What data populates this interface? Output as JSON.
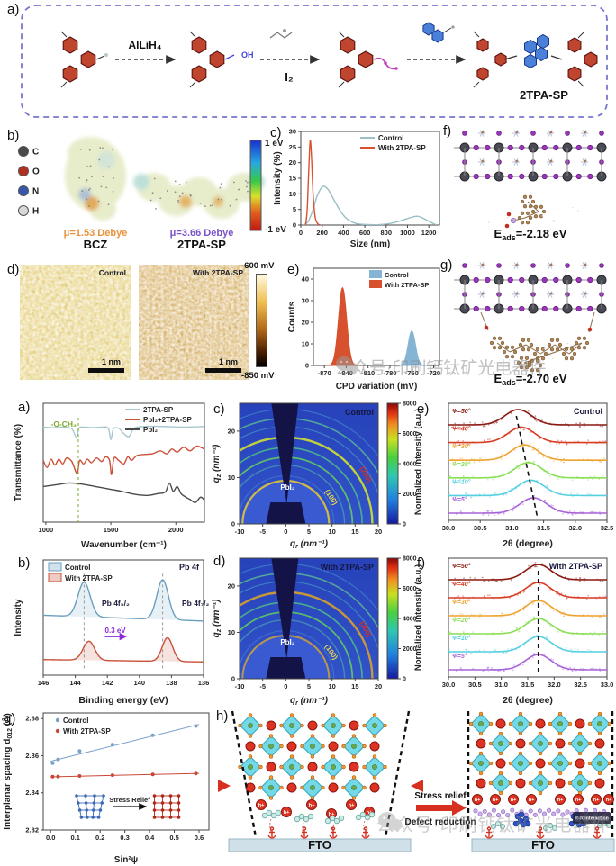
{
  "figure": {
    "panel_labels": {
      "a": "a)",
      "b": "b)",
      "c": "c)",
      "d": "d)",
      "e": "e)",
      "f": "f)",
      "g": "g)",
      "h": "h)",
      "a2": "a)",
      "b2": "b)",
      "c2": "c)",
      "d2": "d)",
      "e2": "e)",
      "f2": "f)",
      "g2": "g)"
    }
  },
  "watermark": {
    "text": "公众号·印刷钙钛矿光电器件"
  },
  "synthesis": {
    "reagent_step1": "AlLiH₄",
    "reagent_step2": "I₂",
    "oh_label": "OH",
    "product": "2TPA-SP"
  },
  "esp": {
    "atoms": [
      {
        "symbol": "C",
        "color": "#4a4a4a"
      },
      {
        "symbol": "O",
        "color": "#b23020"
      },
      {
        "symbol": "N",
        "color": "#3858b0"
      },
      {
        "symbol": "H",
        "color": "#d8d8d8"
      }
    ],
    "molecules": [
      {
        "name": "BCZ",
        "dipole": "μ=1.53 Debye",
        "dipole_color": "#e8923a"
      },
      {
        "name": "2TPA-SP",
        "dipole": "μ=3.66 Debye",
        "dipole_color": "#7b52c8"
      }
    ],
    "colorbar": {
      "top": "1 eV",
      "bottom": "-1 eV"
    }
  },
  "dft": {
    "top": {
      "prefix": "E",
      "sub": "ads",
      "rest": "=-2.18 eV"
    },
    "bottom": {
      "prefix": "E",
      "sub": "ads",
      "rest": "=-2.70 eV"
    }
  },
  "kpfm": {
    "images": [
      {
        "label": "Control"
      },
      {
        "label": "With 2TPA-SP"
      }
    ],
    "scalebar": "1 nm",
    "colorbar": {
      "top": "-600 mV",
      "bottom": "-850 mV"
    }
  },
  "schematic": {
    "arrow_top": "Stress relief",
    "arrow_bottom": "Defect reduction",
    "substrate": "FTO",
    "hole": "h+",
    "pi_label": "π-π interaction"
  },
  "chart_data": [
    {
      "id": "dls",
      "type": "line",
      "title": "",
      "xlabel": "Size (nm)",
      "ylabel": "Intensity (%)",
      "xlim": [
        0,
        1300
      ],
      "ylim": [
        0,
        30
      ],
      "xticks": [
        0,
        200,
        400,
        600,
        800,
        1000,
        1200
      ],
      "yticks": [
        0,
        5,
        10,
        15,
        20,
        25,
        30
      ],
      "legend_pos": "top-right",
      "grid": false,
      "series": [
        {
          "name": "Control",
          "color": "#9abfc7",
          "x": [
            30,
            70,
            110,
            150,
            190,
            220,
            260,
            320,
            380,
            440,
            520,
            620,
            720,
            820,
            920,
            1020,
            1100,
            1180,
            1270
          ],
          "y": [
            0,
            1.2,
            4.5,
            9,
            11.8,
            12.4,
            11.2,
            7.5,
            4,
            1.8,
            0.5,
            0.15,
            0.1,
            0.4,
            1.2,
            2.3,
            2.8,
            1.6,
            0
          ]
        },
        {
          "name": "With 2TPA-SP",
          "color": "#d8512e",
          "x": [
            45,
            60,
            75,
            88,
            100,
            115,
            135,
            160,
            185
          ],
          "y": [
            0,
            5,
            18,
            27,
            22,
            10,
            2.5,
            0.4,
            0
          ]
        }
      ]
    },
    {
      "id": "cpd",
      "type": "peaks",
      "xlabel": "CPD variation (mV)",
      "ylabel": "Counts",
      "xlim": [
        -885,
        -712
      ],
      "ylim": [
        0,
        45
      ],
      "xticks": [
        -870,
        -840,
        -810,
        -780,
        -750,
        -720
      ],
      "yticks": [
        0,
        10,
        20,
        30,
        40
      ],
      "legend": [
        {
          "name": "Control",
          "color": "#85b4d4"
        },
        {
          "name": "With 2TPA-SP",
          "color": "#d8512e"
        }
      ],
      "peaks": [
        {
          "name": "With 2TPA-SP",
          "color": "#d8512e",
          "center": -845,
          "height": 36,
          "sigma": 5.5
        },
        {
          "name": "Control",
          "color": "#85b4d4",
          "center": -750,
          "height": 16,
          "sigma": 5
        }
      ]
    },
    {
      "id": "ftir",
      "type": "line",
      "xlabel": "Wavenumber (cm⁻¹)",
      "ylabel": "Transmittance (%)",
      "xlim": [
        980,
        2220
      ],
      "ylim": [
        0,
        1
      ],
      "xticks": [
        1000,
        1500,
        2000
      ],
      "yticks": [],
      "annotation": {
        "text": "-O-CH₃",
        "x": 1250,
        "color": "#7aa82a"
      },
      "series": [
        {
          "name": "2TPA-SP",
          "color": "#a8c8d0",
          "x": [
            980,
            1060,
            1140,
            1200,
            1235,
            1255,
            1290,
            1360,
            1430,
            1480,
            1500,
            1520,
            1560,
            1600,
            1640,
            1680,
            1760,
            1900,
            2050,
            2220
          ],
          "y": [
            0.8,
            0.795,
            0.8,
            0.785,
            0.715,
            0.79,
            0.8,
            0.795,
            0.8,
            0.79,
            0.695,
            0.785,
            0.79,
            0.745,
            0.72,
            0.79,
            0.805,
            0.805,
            0.8,
            0.805
          ]
        },
        {
          "name": "PbI₂+2TPA-SP",
          "color": "#cc4f38",
          "x": [
            980,
            1010,
            1040,
            1070,
            1100,
            1130,
            1160,
            1200,
            1240,
            1260,
            1290,
            1320,
            1350,
            1390,
            1430,
            1460,
            1490,
            1505,
            1525,
            1560,
            1600,
            1630,
            1660,
            1700,
            1760,
            1820,
            1880,
            1930,
            1970,
            2010,
            2060,
            2110,
            2160,
            2220
          ],
          "y": [
            0.52,
            0.46,
            0.53,
            0.48,
            0.53,
            0.49,
            0.54,
            0.51,
            0.41,
            0.52,
            0.49,
            0.53,
            0.5,
            0.54,
            0.51,
            0.55,
            0.52,
            0.4,
            0.54,
            0.52,
            0.49,
            0.55,
            0.52,
            0.56,
            0.57,
            0.575,
            0.6,
            0.575,
            0.615,
            0.59,
            0.63,
            0.6,
            0.64,
            0.615
          ]
        },
        {
          "name": "PbI₂",
          "color": "#4a4a4a",
          "x": [
            980,
            1080,
            1180,
            1280,
            1380,
            1480,
            1580,
            1680,
            1780,
            1860,
            1920,
            1950,
            1980,
            2010,
            2040,
            2070,
            2110,
            2150,
            2190,
            2220
          ],
          "y": [
            0.3,
            0.315,
            0.33,
            0.32,
            0.3,
            0.28,
            0.26,
            0.235,
            0.225,
            0.24,
            0.255,
            0.33,
            0.26,
            0.3,
            0.24,
            0.215,
            0.19,
            0.165,
            0.21,
            0.185
          ]
        }
      ]
    },
    {
      "id": "xps",
      "type": "xps",
      "title": "Pb 4f",
      "xlabel": "Binding energy (eV)",
      "ylabel": "Intensity",
      "xlim": [
        146,
        136
      ],
      "xticks": [
        146,
        144,
        142,
        140,
        138,
        136
      ],
      "legend": [
        {
          "name": "Control",
          "color": "#6a9fc0"
        },
        {
          "name": "With 2TPA-SP",
          "color": "#c85038"
        }
      ],
      "curves": [
        {
          "name": "Control",
          "color": "#6a9fc0",
          "base": [
            0.52,
            0.47
          ],
          "peaks": [
            {
              "c": 143.45,
              "h": 0.3,
              "s": 0.38
            },
            {
              "c": 138.55,
              "h": 0.345,
              "s": 0.36
            }
          ]
        },
        {
          "name": "With 2TPA-SP",
          "color": "#c85038",
          "base": [
            0.135,
            0.115
          ],
          "peaks": [
            {
              "c": 143.15,
              "h": 0.165,
              "s": 0.36
            },
            {
              "c": 138.25,
              "h": 0.205,
              "s": 0.33
            }
          ]
        }
      ],
      "dashes": [
        143.45,
        138.55
      ],
      "shift": {
        "text": "0.3 eV",
        "x1": 142.15,
        "x2": 140.85,
        "yfrac": 0.335,
        "color": "#8a2ad8"
      },
      "peak_labels": [
        {
          "text": "Pb 4f₅/₂",
          "x": 142.35,
          "yfrac": 0.6
        },
        {
          "text": "Pb 4f₇/₂",
          "x": 137.35,
          "yfrac": 0.6
        }
      ]
    },
    {
      "id": "gw1",
      "type": "giwaxs",
      "title": "Control",
      "xlabel": "q_r (nm⁻¹)",
      "ylabel": "q_z (nm⁻¹)",
      "xlim": [
        -10,
        20
      ],
      "ylim": [
        0,
        26
      ],
      "xticks": [
        -10,
        -5,
        0,
        5,
        10,
        15,
        20
      ],
      "yticks": [
        0,
        10,
        20
      ],
      "cticks": [
        0,
        2000,
        4000,
        6000,
        8000
      ],
      "labels": {
        "pbi2": "PbI₂",
        "hkl100": "(100)",
        "hkl200": "(200)"
      },
      "rings": [
        {
          "q": 9.35,
          "color": "#d8c040",
          "w": 2.2,
          "o": 0.95
        },
        {
          "q": 10.4,
          "color": "#6ab8d8",
          "w": 1.2,
          "o": 0.3
        },
        {
          "q": 12.7,
          "color": "#58c8a8",
          "w": 1.4,
          "o": 0.5
        },
        {
          "q": 14.4,
          "color": "#66d858",
          "w": 1.8,
          "o": 0.8
        },
        {
          "q": 16.5,
          "color": "#58d878",
          "w": 1.6,
          "o": 0.7
        },
        {
          "q": 18.7,
          "color": "#c8d838",
          "w": 2.4,
          "o": 0.95
        },
        {
          "q": 21.0,
          "color": "#58c8c8",
          "w": 1.2,
          "o": 0.45
        },
        {
          "q": 22.8,
          "color": "#68d888",
          "w": 1.6,
          "o": 0.65
        },
        {
          "q": 24.8,
          "color": "#58b8d8",
          "w": 1.2,
          "o": 0.4
        }
      ]
    },
    {
      "id": "gw2",
      "type": "giwaxs",
      "title": "With 2TPA-SP",
      "xlabel": "q_r (nm⁻¹)",
      "ylabel": "q_z (nm⁻¹)",
      "xlim": [
        -10,
        20
      ],
      "ylim": [
        0,
        26
      ],
      "xticks": [
        -10,
        -5,
        0,
        5,
        10,
        15,
        20
      ],
      "yticks": [
        0,
        10,
        20
      ],
      "cticks": [
        0,
        2000,
        4000,
        6000,
        8000
      ],
      "labels": {
        "pbi2": "PbI₂",
        "hkl100": "(100)",
        "hkl200": "(200)"
      },
      "rings": [
        {
          "q": 9.35,
          "color": "#c8a040",
          "w": 2.0,
          "o": 0.9
        },
        {
          "q": 10.4,
          "color": "#6ab8d8",
          "w": 1.2,
          "o": 0.3
        },
        {
          "q": 12.7,
          "color": "#58c8a8",
          "w": 1.4,
          "o": 0.5
        },
        {
          "q": 14.4,
          "color": "#66d858",
          "w": 1.8,
          "o": 0.8
        },
        {
          "q": 16.5,
          "color": "#58d878",
          "w": 1.6,
          "o": 0.7
        },
        {
          "q": 18.7,
          "color": "#d8a030",
          "w": 2.4,
          "o": 0.9
        },
        {
          "q": 21.0,
          "color": "#58c8c8",
          "w": 1.2,
          "o": 0.45
        },
        {
          "q": 22.8,
          "color": "#68d888",
          "w": 1.6,
          "o": 0.65
        },
        {
          "q": 24.8,
          "color": "#58b8d8",
          "w": 1.2,
          "o": 0.4
        }
      ]
    },
    {
      "id": "xrd1",
      "type": "stack",
      "title": "Control",
      "xlabel": "2θ (degree)",
      "ylabel": "Normalized intensity (a.u.)",
      "xlim": [
        30,
        32.5
      ],
      "xticks": [
        30,
        30.5,
        31,
        31.5,
        32,
        32.5
      ],
      "xticklabels": [
        "30.0",
        "30.5",
        "31.0",
        "31.5",
        "32.0",
        "32.5"
      ],
      "sigma": 0.21,
      "series": [
        {
          "label": "Ψ=5°",
          "color": "#a863d8",
          "center": 31.34
        },
        {
          "label": "Ψ=10°",
          "color": "#55d0e0",
          "center": 31.3
        },
        {
          "label": "Ψ=20°",
          "color": "#8ade55",
          "center": 31.26
        },
        {
          "label": "Ψ=30°",
          "color": "#eda32f",
          "center": 31.2
        },
        {
          "label": "Ψ=40°",
          "color": "#d93a22",
          "center": 31.15
        },
        {
          "label": "Ψ=50°",
          "color": "#8a1a12",
          "center": 31.1
        }
      ],
      "dash": {
        "x_top": 31.07,
        "x_bottom": 31.4
      }
    },
    {
      "id": "xrd2",
      "type": "stack",
      "title": "With 2TPA-SP",
      "xlabel": "2θ (degree)",
      "ylabel": "Normalized intensity (a.u.)",
      "xlim": [
        30,
        33
      ],
      "xticks": [
        30,
        30.5,
        31,
        31.5,
        32,
        32.5,
        33
      ],
      "xticklabels": [
        "30.0",
        "30.5",
        "31.0",
        "31.5",
        "32.0",
        "32.5",
        "33.0"
      ],
      "sigma": 0.24,
      "series": [
        {
          "label": "Ψ=5°",
          "color": "#a863d8",
          "center": 31.7
        },
        {
          "label": "Ψ=10°",
          "color": "#55d0e0",
          "center": 31.7
        },
        {
          "label": "Ψ=20°",
          "color": "#8ade55",
          "center": 31.7
        },
        {
          "label": "Ψ=30°",
          "color": "#eda32f",
          "center": 31.7
        },
        {
          "label": "Ψ=40°",
          "color": "#d93a22",
          "center": 31.7
        },
        {
          "label": "Ψ=50°",
          "color": "#8a1a12",
          "center": 31.7
        }
      ],
      "dash": {
        "x_top": 31.7,
        "x_bottom": 31.7
      }
    },
    {
      "id": "spacing",
      "type": "scatter",
      "xlabel": "Sin²ψ",
      "ylabel": "Interplanar spacing d_(012) (Å)",
      "xlim": [
        -0.03,
        0.64
      ],
      "ylim": [
        2.82,
        2.883
      ],
      "xticks": [
        0,
        0.1,
        0.2,
        0.3,
        0.4,
        0.5,
        0.6
      ],
      "xticklabels": [
        "0.0",
        "0.1",
        "0.2",
        "0.3",
        "0.4",
        "0.5",
        "0.6"
      ],
      "yticks": [
        2.82,
        2.84,
        2.86,
        2.88
      ],
      "yticklabels": [
        "2.82",
        "2.84",
        "2.86",
        "2.88"
      ],
      "series": [
        {
          "name": "Control",
          "color": "#7aa0c8",
          "x": [
            0.008,
            0.03,
            0.117,
            0.25,
            0.413,
            0.587
          ],
          "y": [
            2.856,
            2.858,
            2.8625,
            2.866,
            2.871,
            2.876
          ],
          "fit": [
            [
              0,
              2.857
            ],
            [
              0.6,
              2.8768
            ]
          ]
        },
        {
          "name": "With 2TPA-SP",
          "color": "#c84838",
          "x": [
            0.008,
            0.03,
            0.117,
            0.25,
            0.413,
            0.587
          ],
          "y": [
            2.8487,
            2.8488,
            2.8491,
            2.8495,
            2.8499,
            2.8504
          ],
          "fit": [
            [
              0,
              2.8486
            ],
            [
              0.6,
              2.8505
            ]
          ]
        }
      ],
      "inset": {
        "arrow_label": "Stress Relief"
      }
    }
  ]
}
